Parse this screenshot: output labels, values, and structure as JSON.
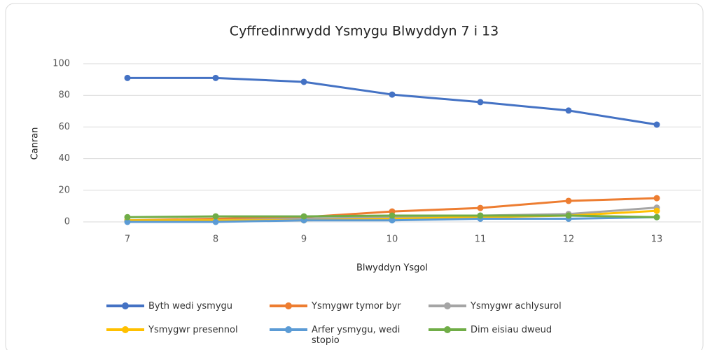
{
  "chart_data": {
    "type": "line",
    "title": "Cyffredinrwydd Ysmygu Blwyddyn 7 i 13",
    "x_label": "Blwyddyn Ysgol",
    "y_label": "Canran",
    "categories": [
      "7",
      "8",
      "9",
      "10",
      "11",
      "12",
      "13"
    ],
    "ylim": [
      0,
      100
    ],
    "yticks": [
      0,
      20,
      40,
      60,
      80,
      100
    ],
    "grid": true,
    "legend": "bottom",
    "series": [
      {
        "name": "Byth wedi ysmygu",
        "color": "#4472c4",
        "values": [
          91,
          91,
          88.5,
          80.5,
          75.7,
          70.4,
          61.5
        ]
      },
      {
        "name": "Ysmygwr tymor byr",
        "color": "#ed7d31",
        "values": [
          1,
          2,
          3,
          6.6,
          8.8,
          13.3,
          15
        ]
      },
      {
        "name": "Ysmygwr achlysurol",
        "color": "#a5a5a5",
        "values": [
          1,
          1,
          2,
          3,
          4,
          5,
          9
        ]
      },
      {
        "name": "Ysmygwr presennol",
        "color": "#ffc000",
        "values": [
          1,
          1,
          1,
          2,
          3,
          4,
          7
        ]
      },
      {
        "name": "Arfer ysmygu, wedi stopio",
        "color": "#5b9bd5",
        "values": [
          0,
          0,
          1,
          1,
          2,
          2,
          3
        ]
      },
      {
        "name": "Dim eisiau dweud",
        "color": "#70ad47",
        "values": [
          3,
          3.5,
          3.5,
          4,
          4,
          4,
          3
        ]
      }
    ]
  }
}
